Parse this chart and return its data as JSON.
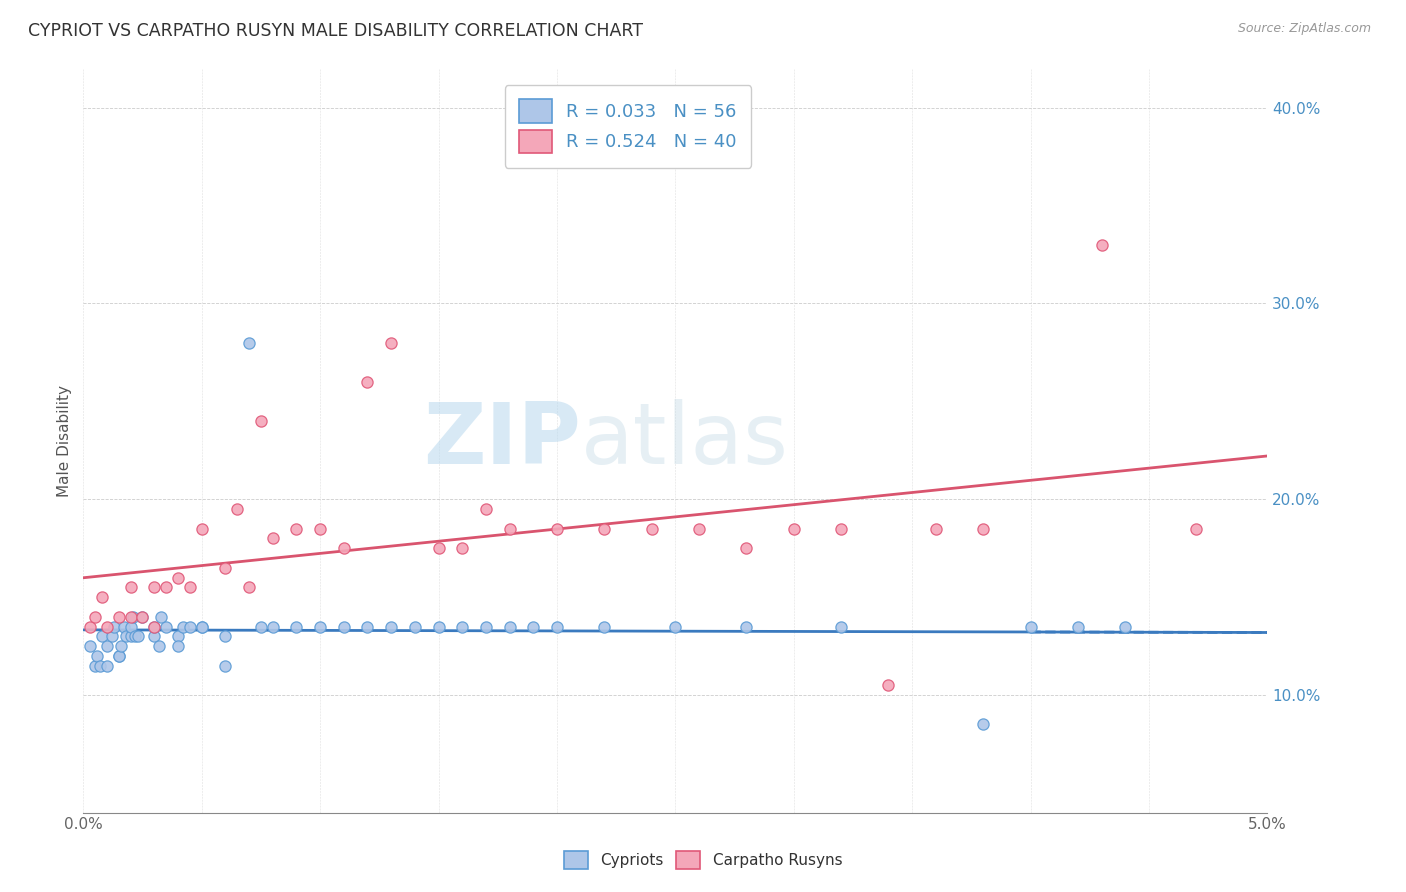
{
  "title": "CYPRIOT VS CARPATHO RUSYN MALE DISABILITY CORRELATION CHART",
  "source": "Source: ZipAtlas.com",
  "ylabel": "Male Disability",
  "xlim": [
    0.0,
    0.05
  ],
  "ylim": [
    0.04,
    0.42
  ],
  "xticks": [
    0.0,
    0.005,
    0.01,
    0.015,
    0.02,
    0.025,
    0.03,
    0.035,
    0.04,
    0.045,
    0.05
  ],
  "xtick_labels": [
    "0.0%",
    "",
    "",
    "",
    "",
    "",
    "",
    "",
    "",
    "",
    "5.0%"
  ],
  "yticks": [
    0.1,
    0.2,
    0.3,
    0.4
  ],
  "ytick_labels": [
    "10.0%",
    "20.0%",
    "30.0%",
    "40.0%"
  ],
  "cypriot_color": "#aec6e8",
  "carpatho_color": "#f4a7b9",
  "cypriot_edge_color": "#5b9bd5",
  "carpatho_edge_color": "#e05878",
  "cypriot_line_color": "#3a7abf",
  "carpatho_line_color": "#d9546e",
  "R_cypriot": 0.033,
  "N_cypriot": 56,
  "R_carpatho": 0.524,
  "N_carpatho": 40,
  "watermark_zip": "ZIP",
  "watermark_atlas": "atlas",
  "cypriot_x": [
    0.0003,
    0.0005,
    0.0006,
    0.0007,
    0.0008,
    0.001,
    0.001,
    0.0012,
    0.0013,
    0.0015,
    0.0015,
    0.0016,
    0.0017,
    0.0018,
    0.002,
    0.002,
    0.0021,
    0.0022,
    0.0023,
    0.0025,
    0.003,
    0.003,
    0.0032,
    0.0033,
    0.0035,
    0.004,
    0.004,
    0.0042,
    0.0045,
    0.005,
    0.005,
    0.006,
    0.006,
    0.007,
    0.0075,
    0.008,
    0.009,
    0.01,
    0.011,
    0.012,
    0.013,
    0.014,
    0.015,
    0.016,
    0.017,
    0.018,
    0.019,
    0.02,
    0.022,
    0.025,
    0.028,
    0.032,
    0.038,
    0.04,
    0.042,
    0.044
  ],
  "cypriot_y": [
    0.125,
    0.115,
    0.12,
    0.115,
    0.13,
    0.115,
    0.125,
    0.13,
    0.135,
    0.12,
    0.12,
    0.125,
    0.135,
    0.13,
    0.13,
    0.135,
    0.14,
    0.13,
    0.13,
    0.14,
    0.13,
    0.135,
    0.125,
    0.14,
    0.135,
    0.13,
    0.125,
    0.135,
    0.135,
    0.135,
    0.135,
    0.115,
    0.13,
    0.28,
    0.135,
    0.135,
    0.135,
    0.135,
    0.135,
    0.135,
    0.135,
    0.135,
    0.135,
    0.135,
    0.135,
    0.135,
    0.135,
    0.135,
    0.135,
    0.135,
    0.135,
    0.135,
    0.085,
    0.135,
    0.135,
    0.135
  ],
  "carpatho_x": [
    0.0003,
    0.0005,
    0.0008,
    0.001,
    0.0015,
    0.002,
    0.002,
    0.0025,
    0.003,
    0.003,
    0.0035,
    0.004,
    0.0045,
    0.005,
    0.006,
    0.0065,
    0.007,
    0.0075,
    0.008,
    0.009,
    0.01,
    0.011,
    0.012,
    0.013,
    0.015,
    0.016,
    0.017,
    0.018,
    0.02,
    0.022,
    0.024,
    0.026,
    0.028,
    0.03,
    0.032,
    0.034,
    0.036,
    0.038,
    0.043,
    0.047
  ],
  "carpatho_y": [
    0.135,
    0.14,
    0.15,
    0.135,
    0.14,
    0.14,
    0.155,
    0.14,
    0.135,
    0.155,
    0.155,
    0.16,
    0.155,
    0.185,
    0.165,
    0.195,
    0.155,
    0.24,
    0.18,
    0.185,
    0.185,
    0.175,
    0.26,
    0.28,
    0.175,
    0.175,
    0.195,
    0.185,
    0.185,
    0.185,
    0.185,
    0.185,
    0.175,
    0.185,
    0.185,
    0.105,
    0.185,
    0.185,
    0.33,
    0.185
  ]
}
